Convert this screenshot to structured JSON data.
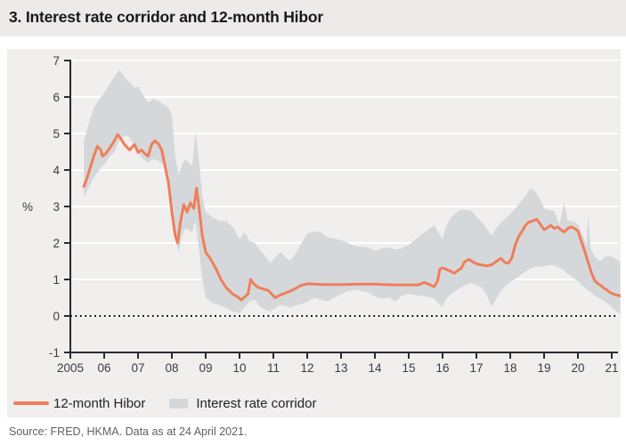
{
  "title": "3. Interest rate corridor and 12-month Hibor",
  "source": "Source: FRED, HKMA. Data as at 24 April 2021.",
  "colors": {
    "title_bar_bg": "#ecebe9",
    "card_bg": "#f0efed",
    "hibor_line": "#ef7e59",
    "corridor_band": "#d5d8db",
    "grid": "#ffffff",
    "axis": "#2a2a31",
    "axis_text": "#3b3b45",
    "zero_line": "#17171a"
  },
  "legend": [
    {
      "label": "12-month Hibor",
      "type": "line",
      "color": "#ef7e59"
    },
    {
      "label": "Interest rate corridor",
      "type": "band",
      "color": "#d5d8db"
    }
  ],
  "chart_data": {
    "type": "line",
    "title": "3. Interest rate corridor and 12-month Hibor",
    "ylabel": "%",
    "xlabel": "",
    "ylim": [
      -1,
      7
    ],
    "xlim": [
      2005,
      2021.3
    ],
    "grid": "horizontal-white",
    "zero_line": "dotted-black-at-0",
    "legend_position": "bottom-left",
    "yticks": {
      "values": [
        -1,
        0,
        1,
        2,
        3,
        4,
        5,
        6,
        7
      ],
      "labels": [
        "-1",
        "0",
        "1",
        "2",
        "3",
        "4",
        "5",
        "6",
        "7"
      ]
    },
    "xticks": {
      "values": [
        2005,
        2006,
        2007,
        2008,
        2009,
        2010,
        2011,
        2012,
        2013,
        2014,
        2015,
        2016,
        2017,
        2018,
        2019,
        2020,
        2021
      ],
      "labels": [
        "2005",
        "06",
        "07",
        "08",
        "09",
        "10",
        "11",
        "12",
        "13",
        "14",
        "15",
        "16",
        "17",
        "18",
        "19",
        "20",
        "21"
      ]
    },
    "series": [
      {
        "name": "12-month Hibor",
        "type": "line",
        "color": "#ef7e59",
        "points": [
          [
            2005.4,
            3.55
          ],
          [
            2005.5,
            3.8
          ],
          [
            2005.6,
            4.1
          ],
          [
            2005.7,
            4.4
          ],
          [
            2005.8,
            4.65
          ],
          [
            2005.9,
            4.55
          ],
          [
            2005.95,
            4.38
          ],
          [
            2006.05,
            4.45
          ],
          [
            2006.2,
            4.65
          ],
          [
            2006.3,
            4.8
          ],
          [
            2006.4,
            4.97
          ],
          [
            2006.5,
            4.85
          ],
          [
            2006.6,
            4.7
          ],
          [
            2006.75,
            4.55
          ],
          [
            2006.9,
            4.7
          ],
          [
            2007.0,
            4.48
          ],
          [
            2007.1,
            4.55
          ],
          [
            2007.2,
            4.45
          ],
          [
            2007.3,
            4.38
          ],
          [
            2007.4,
            4.7
          ],
          [
            2007.5,
            4.8
          ],
          [
            2007.6,
            4.72
          ],
          [
            2007.7,
            4.55
          ],
          [
            2007.8,
            4.1
          ],
          [
            2007.9,
            3.65
          ],
          [
            2008.0,
            2.85
          ],
          [
            2008.1,
            2.2
          ],
          [
            2008.17,
            2.0
          ],
          [
            2008.25,
            2.55
          ],
          [
            2008.35,
            3.05
          ],
          [
            2008.45,
            2.85
          ],
          [
            2008.55,
            3.1
          ],
          [
            2008.65,
            2.95
          ],
          [
            2008.73,
            3.5
          ],
          [
            2008.8,
            3.0
          ],
          [
            2008.9,
            2.2
          ],
          [
            2009.0,
            1.75
          ],
          [
            2009.15,
            1.55
          ],
          [
            2009.3,
            1.3
          ],
          [
            2009.45,
            1.0
          ],
          [
            2009.6,
            0.78
          ],
          [
            2009.8,
            0.6
          ],
          [
            2009.95,
            0.52
          ],
          [
            2010.05,
            0.44
          ],
          [
            2010.15,
            0.52
          ],
          [
            2010.25,
            0.6
          ],
          [
            2010.33,
            1.0
          ],
          [
            2010.42,
            0.88
          ],
          [
            2010.55,
            0.78
          ],
          [
            2010.7,
            0.74
          ],
          [
            2010.85,
            0.7
          ],
          [
            2010.95,
            0.6
          ],
          [
            2011.05,
            0.5
          ],
          [
            2011.2,
            0.57
          ],
          [
            2011.35,
            0.63
          ],
          [
            2011.5,
            0.68
          ],
          [
            2011.65,
            0.75
          ],
          [
            2011.8,
            0.83
          ],
          [
            2012.0,
            0.88
          ],
          [
            2012.5,
            0.86
          ],
          [
            2013.0,
            0.86
          ],
          [
            2013.5,
            0.87
          ],
          [
            2014.0,
            0.87
          ],
          [
            2014.5,
            0.85
          ],
          [
            2015.0,
            0.85
          ],
          [
            2015.3,
            0.85
          ],
          [
            2015.45,
            0.92
          ],
          [
            2015.6,
            0.87
          ],
          [
            2015.75,
            0.8
          ],
          [
            2015.85,
            0.95
          ],
          [
            2015.92,
            1.28
          ],
          [
            2016.0,
            1.32
          ],
          [
            2016.1,
            1.28
          ],
          [
            2016.25,
            1.22
          ],
          [
            2016.35,
            1.17
          ],
          [
            2016.45,
            1.25
          ],
          [
            2016.55,
            1.3
          ],
          [
            2016.65,
            1.48
          ],
          [
            2016.78,
            1.55
          ],
          [
            2016.9,
            1.48
          ],
          [
            2017.0,
            1.43
          ],
          [
            2017.15,
            1.4
          ],
          [
            2017.3,
            1.37
          ],
          [
            2017.45,
            1.4
          ],
          [
            2017.6,
            1.5
          ],
          [
            2017.72,
            1.58
          ],
          [
            2017.85,
            1.46
          ],
          [
            2017.95,
            1.45
          ],
          [
            2018.05,
            1.6
          ],
          [
            2018.15,
            1.95
          ],
          [
            2018.25,
            2.18
          ],
          [
            2018.35,
            2.32
          ],
          [
            2018.45,
            2.48
          ],
          [
            2018.55,
            2.57
          ],
          [
            2018.65,
            2.6
          ],
          [
            2018.78,
            2.65
          ],
          [
            2018.9,
            2.5
          ],
          [
            2019.0,
            2.36
          ],
          [
            2019.1,
            2.42
          ],
          [
            2019.2,
            2.48
          ],
          [
            2019.3,
            2.4
          ],
          [
            2019.4,
            2.44
          ],
          [
            2019.5,
            2.36
          ],
          [
            2019.6,
            2.3
          ],
          [
            2019.7,
            2.4
          ],
          [
            2019.8,
            2.44
          ],
          [
            2019.9,
            2.4
          ],
          [
            2020.0,
            2.33
          ],
          [
            2020.1,
            2.05
          ],
          [
            2020.2,
            1.78
          ],
          [
            2020.3,
            1.48
          ],
          [
            2020.4,
            1.18
          ],
          [
            2020.5,
            0.96
          ],
          [
            2020.6,
            0.88
          ],
          [
            2020.7,
            0.82
          ],
          [
            2020.78,
            0.75
          ],
          [
            2020.85,
            0.72
          ],
          [
            2020.95,
            0.64
          ],
          [
            2021.05,
            0.6
          ],
          [
            2021.15,
            0.57
          ],
          [
            2021.25,
            0.55
          ]
        ]
      },
      {
        "name": "Interest rate corridor",
        "type": "band",
        "color": "#d5d8db",
        "points_format": [
          "x",
          "lower",
          "upper"
        ],
        "points": [
          [
            2005.4,
            3.25,
            4.8
          ],
          [
            2005.55,
            3.55,
            5.3
          ],
          [
            2005.7,
            3.8,
            5.7
          ],
          [
            2005.85,
            4.0,
            5.95
          ],
          [
            2006.0,
            4.15,
            6.1
          ],
          [
            2006.15,
            4.35,
            6.35
          ],
          [
            2006.3,
            4.5,
            6.55
          ],
          [
            2006.45,
            4.8,
            6.75
          ],
          [
            2006.6,
            4.95,
            6.55
          ],
          [
            2006.75,
            4.9,
            6.4
          ],
          [
            2006.9,
            4.65,
            6.25
          ],
          [
            2007.0,
            4.45,
            6.3
          ],
          [
            2007.15,
            4.3,
            6.05
          ],
          [
            2007.3,
            4.2,
            5.85
          ],
          [
            2007.45,
            4.3,
            5.95
          ],
          [
            2007.6,
            4.25,
            5.9
          ],
          [
            2007.75,
            4.15,
            5.8
          ],
          [
            2007.9,
            3.9,
            5.7
          ],
          [
            2008.0,
            3.1,
            5.5
          ],
          [
            2008.1,
            2.2,
            4.4
          ],
          [
            2008.2,
            1.75,
            3.9
          ],
          [
            2008.3,
            2.2,
            4.15
          ],
          [
            2008.4,
            2.4,
            4.3
          ],
          [
            2008.5,
            2.35,
            4.2
          ],
          [
            2008.6,
            2.3,
            4.1
          ],
          [
            2008.7,
            2.6,
            5.05
          ],
          [
            2008.8,
            1.8,
            4.3
          ],
          [
            2008.9,
            1.0,
            3.3
          ],
          [
            2009.0,
            0.5,
            2.85
          ],
          [
            2009.2,
            0.35,
            2.7
          ],
          [
            2009.4,
            0.3,
            2.6
          ],
          [
            2009.6,
            0.22,
            2.6
          ],
          [
            2009.8,
            0.12,
            2.45
          ],
          [
            2010.0,
            0.08,
            2.1
          ],
          [
            2010.15,
            0.25,
            2.3
          ],
          [
            2010.3,
            0.4,
            2.05
          ],
          [
            2010.45,
            0.45,
            2.0
          ],
          [
            2010.6,
            0.25,
            1.8
          ],
          [
            2010.75,
            0.18,
            1.65
          ],
          [
            2010.9,
            0.12,
            1.45
          ],
          [
            2011.05,
            0.22,
            1.6
          ],
          [
            2011.2,
            0.3,
            1.75
          ],
          [
            2011.35,
            0.28,
            1.62
          ],
          [
            2011.5,
            0.22,
            1.52
          ],
          [
            2011.65,
            0.28,
            1.7
          ],
          [
            2011.8,
            0.32,
            1.95
          ],
          [
            2012.0,
            0.38,
            2.25
          ],
          [
            2012.2,
            0.5,
            2.32
          ],
          [
            2012.4,
            0.45,
            2.3
          ],
          [
            2012.6,
            0.4,
            2.15
          ],
          [
            2012.8,
            0.5,
            2.12
          ],
          [
            2013.0,
            0.6,
            2.08
          ],
          [
            2013.2,
            0.68,
            2.0
          ],
          [
            2013.4,
            0.72,
            1.92
          ],
          [
            2013.6,
            0.68,
            1.9
          ],
          [
            2013.8,
            0.65,
            1.88
          ],
          [
            2014.0,
            0.53,
            1.78
          ],
          [
            2014.2,
            0.47,
            1.85
          ],
          [
            2014.4,
            0.5,
            1.88
          ],
          [
            2014.6,
            0.4,
            1.82
          ],
          [
            2014.8,
            0.55,
            1.86
          ],
          [
            2015.0,
            0.6,
            1.95
          ],
          [
            2015.2,
            0.57,
            2.1
          ],
          [
            2015.4,
            0.55,
            2.25
          ],
          [
            2015.6,
            0.52,
            2.38
          ],
          [
            2015.75,
            0.48,
            2.5
          ],
          [
            2015.9,
            0.32,
            2.25
          ],
          [
            2016.0,
            0.25,
            2.1
          ],
          [
            2016.1,
            0.45,
            2.45
          ],
          [
            2016.25,
            0.6,
            2.7
          ],
          [
            2016.4,
            0.7,
            2.82
          ],
          [
            2016.55,
            0.78,
            2.92
          ],
          [
            2016.7,
            0.85,
            2.9
          ],
          [
            2016.85,
            0.9,
            2.88
          ],
          [
            2017.0,
            0.85,
            2.72
          ],
          [
            2017.15,
            0.78,
            2.58
          ],
          [
            2017.3,
            0.58,
            2.4
          ],
          [
            2017.45,
            0.25,
            2.2
          ],
          [
            2017.6,
            0.5,
            2.42
          ],
          [
            2017.75,
            0.72,
            2.58
          ],
          [
            2017.9,
            0.85,
            2.7
          ],
          [
            2018.0,
            0.92,
            2.8
          ],
          [
            2018.15,
            1.02,
            2.95
          ],
          [
            2018.3,
            1.12,
            3.12
          ],
          [
            2018.45,
            1.22,
            3.3
          ],
          [
            2018.6,
            1.3,
            3.5
          ],
          [
            2018.75,
            1.35,
            3.4
          ],
          [
            2018.9,
            1.35,
            3.15
          ],
          [
            2019.0,
            1.36,
            2.95
          ],
          [
            2019.15,
            1.4,
            2.9
          ],
          [
            2019.3,
            1.38,
            2.88
          ],
          [
            2019.45,
            1.32,
            2.5
          ],
          [
            2019.6,
            1.25,
            3.1
          ],
          [
            2019.7,
            1.15,
            2.62
          ],
          [
            2019.85,
            1.05,
            2.6
          ],
          [
            2020.0,
            0.95,
            2.52
          ],
          [
            2020.15,
            0.82,
            2.2
          ],
          [
            2020.25,
            0.74,
            1.95
          ],
          [
            2020.3,
            0.7,
            2.75
          ],
          [
            2020.38,
            0.65,
            1.85
          ],
          [
            2020.5,
            0.55,
            1.62
          ],
          [
            2020.65,
            0.48,
            1.5
          ],
          [
            2020.8,
            0.4,
            1.62
          ],
          [
            2020.95,
            0.28,
            1.65
          ],
          [
            2021.1,
            0.15,
            1.58
          ],
          [
            2021.25,
            0.05,
            1.48
          ]
        ]
      }
    ]
  }
}
